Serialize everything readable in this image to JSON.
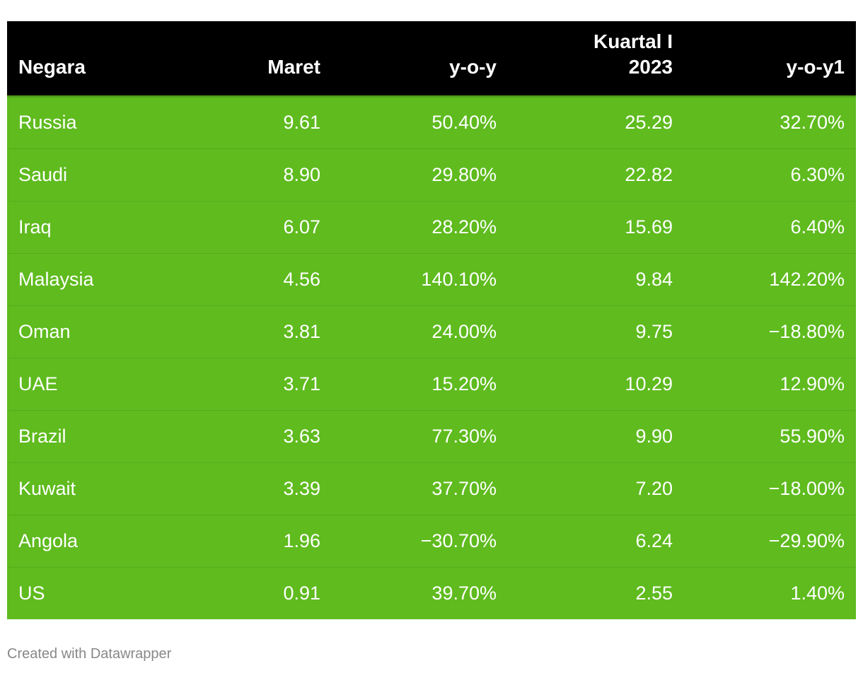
{
  "chart_data": {
    "type": "table",
    "columns": [
      "Negara",
      "Maret",
      "y-o-y",
      "Kuartal I 2023",
      "y-o-y1"
    ],
    "rows": [
      [
        "Russia",
        "9.61",
        "50.40%",
        "25.29",
        "32.70%"
      ],
      [
        "Saudi",
        "8.90",
        "29.80%",
        "22.82",
        "6.30%"
      ],
      [
        "Iraq",
        "6.07",
        "28.20%",
        "15.69",
        "6.40%"
      ],
      [
        "Malaysia",
        "4.56",
        "140.10%",
        "9.84",
        "142.20%"
      ],
      [
        "Oman",
        "3.81",
        "24.00%",
        "9.75",
        "−18.80%"
      ],
      [
        "UAE",
        "3.71",
        "15.20%",
        "10.29",
        "12.90%"
      ],
      [
        "Brazil",
        "3.63",
        "77.30%",
        "9.90",
        "55.90%"
      ],
      [
        "Kuwait",
        "3.39",
        "37.70%",
        "7.20",
        "−18.00%"
      ],
      [
        "Angola",
        "1.96",
        "−30.70%",
        "6.24",
        "−29.90%"
      ],
      [
        "US",
        "0.91",
        "39.70%",
        "2.55",
        "1.40%"
      ]
    ]
  },
  "colors": {
    "header_bg": "#000000",
    "row_bg": "#5fbb1e",
    "text": "#ffffff",
    "footer_text": "#888888"
  },
  "footer": "Created with Datawrapper"
}
